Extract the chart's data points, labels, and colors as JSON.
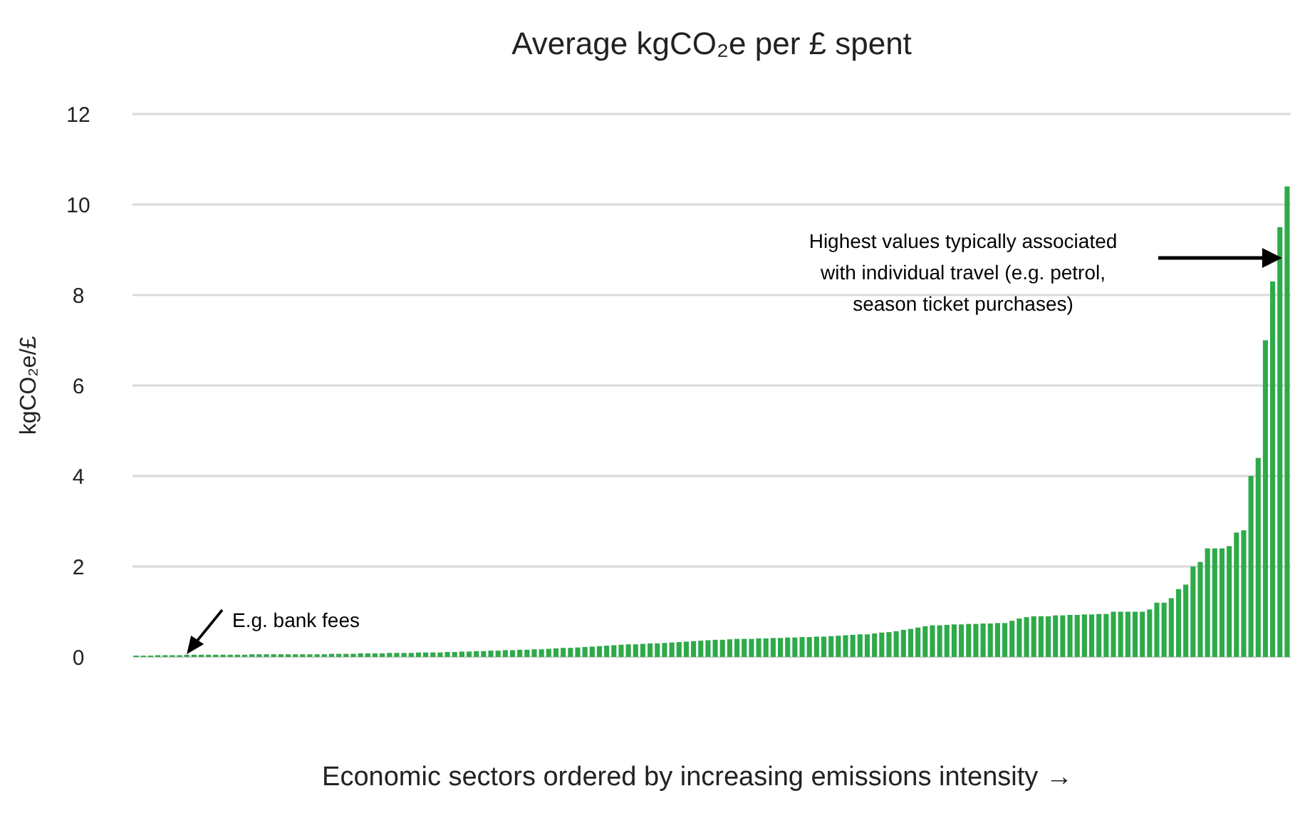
{
  "chart_data": {
    "type": "bar",
    "title": "Average kgCO₂e per £ spent",
    "xlabel": "Economic sectors ordered by increasing emissions intensity →",
    "ylabel": "kgCO₂e/£",
    "annotations": [
      "Highest values typically associated with individual travel (e.g. petrol, season ticket purchases)",
      "E.g. bank fees"
    ],
    "categories": [
      null,
      null,
      null,
      null,
      null,
      null,
      null,
      null,
      null,
      null,
      null,
      null,
      null,
      null,
      null,
      null,
      null,
      null,
      null,
      null,
      null,
      null,
      null,
      null,
      null,
      null,
      null,
      null,
      null,
      null,
      null,
      null,
      null,
      null,
      null,
      null,
      null,
      null,
      null,
      null,
      null,
      null,
      null,
      null,
      null,
      null,
      null,
      null,
      null,
      null,
      null,
      null,
      null,
      null,
      null,
      null,
      null,
      null,
      null,
      null,
      null,
      null,
      null,
      null,
      null,
      null,
      null,
      null,
      null,
      null,
      null,
      null,
      null,
      null,
      null,
      null,
      null,
      null,
      null,
      null,
      null,
      null,
      null,
      null,
      null,
      null,
      null,
      null,
      null,
      null,
      null,
      null,
      null,
      null,
      null,
      null,
      null,
      null,
      null,
      null,
      null,
      null,
      null,
      null,
      null,
      null,
      null,
      null,
      null,
      null,
      null,
      null,
      null,
      null,
      null,
      null,
      null,
      null,
      null,
      null,
      null,
      null,
      null,
      null,
      null,
      null,
      null,
      null,
      null,
      null,
      null,
      null,
      null,
      null,
      null,
      null,
      null,
      null,
      null,
      null,
      null,
      null,
      null,
      null,
      null,
      null,
      null,
      null,
      null,
      null,
      null,
      null,
      null,
      null,
      null,
      null,
      null,
      null,
      null,
      null
    ],
    "values": [
      0.03,
      0.03,
      0.03,
      0.04,
      0.04,
      0.04,
      0.04,
      0.05,
      0.05,
      0.05,
      0.05,
      0.05,
      0.05,
      0.05,
      0.05,
      0.05,
      0.06,
      0.06,
      0.06,
      0.06,
      0.06,
      0.06,
      0.06,
      0.06,
      0.06,
      0.06,
      0.06,
      0.07,
      0.07,
      0.07,
      0.07,
      0.08,
      0.08,
      0.08,
      0.08,
      0.09,
      0.09,
      0.09,
      0.09,
      0.1,
      0.1,
      0.1,
      0.1,
      0.11,
      0.11,
      0.12,
      0.12,
      0.13,
      0.13,
      0.14,
      0.14,
      0.15,
      0.15,
      0.16,
      0.16,
      0.17,
      0.17,
      0.18,
      0.19,
      0.2,
      0.2,
      0.21,
      0.22,
      0.23,
      0.24,
      0.25,
      0.26,
      0.27,
      0.28,
      0.28,
      0.29,
      0.3,
      0.3,
      0.31,
      0.32,
      0.33,
      0.34,
      0.35,
      0.36,
      0.37,
      0.38,
      0.38,
      0.39,
      0.4,
      0.4,
      0.4,
      0.41,
      0.41,
      0.42,
      0.42,
      0.43,
      0.43,
      0.44,
      0.44,
      0.45,
      0.45,
      0.46,
      0.47,
      0.48,
      0.49,
      0.5,
      0.5,
      0.52,
      0.54,
      0.55,
      0.57,
      0.6,
      0.62,
      0.65,
      0.68,
      0.7,
      0.7,
      0.71,
      0.72,
      0.72,
      0.73,
      0.73,
      0.74,
      0.74,
      0.75,
      0.75,
      0.8,
      0.85,
      0.88,
      0.9,
      0.9,
      0.9,
      0.92,
      0.92,
      0.93,
      0.93,
      0.94,
      0.94,
      0.95,
      0.95,
      1,
      1,
      1,
      1,
      1,
      1.05,
      1.2,
      1.2,
      1.3,
      1.5,
      1.6,
      2,
      2.1,
      2.4,
      2.4,
      2.4,
      2.45,
      2.75,
      2.8,
      4,
      4.4,
      7,
      8.3,
      9.5,
      10.4
    ],
    "color": "#2eaa4a",
    "ylim": [
      0,
      12
    ],
    "yticks": [
      0,
      2,
      4,
      6,
      8,
      10,
      12
    ],
    "grid": "y"
  }
}
